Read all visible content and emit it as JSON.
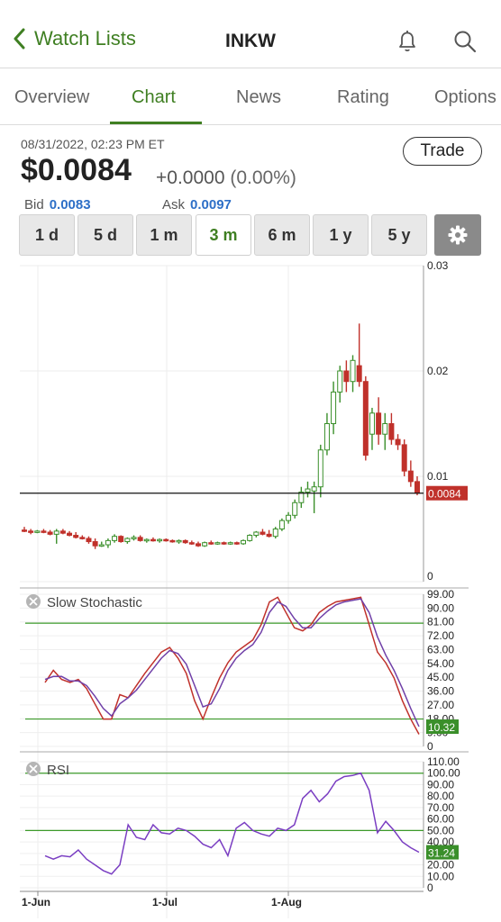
{
  "header": {
    "back_label": "Watch Lists",
    "title": "INKW"
  },
  "tabs": [
    {
      "label": "Overview",
      "active": false
    },
    {
      "label": "Chart",
      "active": true
    },
    {
      "label": "News",
      "active": false
    },
    {
      "label": "Rating",
      "active": false
    },
    {
      "label": "Options",
      "active": false
    }
  ],
  "quote": {
    "timestamp": "08/31/2022, 02:23 PM ET",
    "price": "$0.0084",
    "change": "+0.0000",
    "change_pct": "(0.00%)",
    "trade_label": "Trade",
    "bid_label": "Bid",
    "bid": "0.0083",
    "ask_label": "Ask",
    "ask": "0.0097"
  },
  "ranges": [
    {
      "label": "1 d",
      "active": false
    },
    {
      "label": "5 d",
      "active": false
    },
    {
      "label": "1 m",
      "active": false
    },
    {
      "label": "3 m",
      "active": true
    },
    {
      "label": "6 m",
      "active": false
    },
    {
      "label": "1 y",
      "active": false
    },
    {
      "label": "5 y",
      "active": false
    }
  ],
  "settings_icon": "gear-icon",
  "colors": {
    "accent": "#3f7f22",
    "up": "#3a8f2a",
    "down": "#c0312b",
    "link": "#2d6fc7"
  },
  "chart_data": [
    {
      "type": "candlestick",
      "title": "",
      "y_ticks": [
        "0.03",
        "0.02",
        "0.01",
        "0"
      ],
      "ylim": [
        0,
        0.03
      ],
      "last_price_label": "0.0084",
      "last_price": 0.0084,
      "x_ticks": [
        "1-Jun",
        "1-Jul",
        "1-Aug"
      ],
      "candles": [
        [
          0.0049,
          0.0052,
          0.0047,
          0.0048
        ],
        [
          0.0048,
          0.005,
          0.0045,
          0.0047
        ],
        [
          0.0047,
          0.0049,
          0.0046,
          0.0048
        ],
        [
          0.0048,
          0.005,
          0.0046,
          0.0047
        ],
        [
          0.0047,
          0.0049,
          0.0044,
          0.0045
        ],
        [
          0.0045,
          0.005,
          0.0036,
          0.0048
        ],
        [
          0.0048,
          0.005,
          0.0045,
          0.0046
        ],
        [
          0.0046,
          0.0048,
          0.0043,
          0.0044
        ],
        [
          0.0044,
          0.0047,
          0.0041,
          0.0042
        ],
        [
          0.0042,
          0.0044,
          0.004,
          0.0041
        ],
        [
          0.0041,
          0.0043,
          0.0036,
          0.0038
        ],
        [
          0.0038,
          0.0041,
          0.0031,
          0.0034
        ],
        [
          0.0034,
          0.0038,
          0.0033,
          0.0035
        ],
        [
          0.0035,
          0.0041,
          0.0032,
          0.0039
        ],
        [
          0.0039,
          0.0045,
          0.0037,
          0.0043
        ],
        [
          0.0043,
          0.0044,
          0.0037,
          0.0038
        ],
        [
          0.0038,
          0.0042,
          0.0036,
          0.0041
        ],
        [
          0.0041,
          0.0044,
          0.0039,
          0.0042
        ],
        [
          0.0042,
          0.0044,
          0.0038,
          0.0039
        ],
        [
          0.0039,
          0.0041,
          0.0037,
          0.004
        ],
        [
          0.004,
          0.0042,
          0.0038,
          0.0039
        ],
        [
          0.0039,
          0.0041,
          0.0037,
          0.004
        ],
        [
          0.004,
          0.0041,
          0.0038,
          0.0039
        ],
        [
          0.0039,
          0.004,
          0.0037,
          0.0038
        ],
        [
          0.0038,
          0.004,
          0.0036,
          0.0039
        ],
        [
          0.0039,
          0.004,
          0.0036,
          0.0037
        ],
        [
          0.0037,
          0.0039,
          0.0035,
          0.0036
        ],
        [
          0.0036,
          0.0038,
          0.0033,
          0.0034
        ],
        [
          0.0034,
          0.0038,
          0.0033,
          0.0037
        ],
        [
          0.0037,
          0.0039,
          0.0035,
          0.0036
        ],
        [
          0.0036,
          0.0038,
          0.0035,
          0.0037
        ],
        [
          0.0037,
          0.0038,
          0.0035,
          0.0036
        ],
        [
          0.0036,
          0.0038,
          0.0035,
          0.0037
        ],
        [
          0.0037,
          0.0038,
          0.0035,
          0.0036
        ],
        [
          0.0036,
          0.004,
          0.0035,
          0.0039
        ],
        [
          0.0039,
          0.0045,
          0.0038,
          0.0044
        ],
        [
          0.0044,
          0.0048,
          0.0042,
          0.0047
        ],
        [
          0.0047,
          0.005,
          0.0044,
          0.0045
        ],
        [
          0.0045,
          0.0049,
          0.0042,
          0.0043
        ],
        [
          0.0043,
          0.0052,
          0.0041,
          0.005
        ],
        [
          0.005,
          0.006,
          0.0048,
          0.0058
        ],
        [
          0.0058,
          0.0066,
          0.0055,
          0.0063
        ],
        [
          0.0063,
          0.0078,
          0.006,
          0.0075
        ],
        [
          0.0075,
          0.009,
          0.007,
          0.0085
        ],
        [
          0.0085,
          0.0095,
          0.008,
          0.0088
        ],
        [
          0.0086,
          0.0095,
          0.0065,
          0.009
        ],
        [
          0.009,
          0.013,
          0.008,
          0.0125
        ],
        [
          0.0125,
          0.016,
          0.012,
          0.015
        ],
        [
          0.015,
          0.019,
          0.014,
          0.018
        ],
        [
          0.018,
          0.0205,
          0.017,
          0.02
        ],
        [
          0.02,
          0.021,
          0.018,
          0.019
        ],
        [
          0.019,
          0.0215,
          0.018,
          0.021
        ],
        [
          0.0205,
          0.0245,
          0.0185,
          0.019
        ],
        [
          0.019,
          0.0195,
          0.0115,
          0.012
        ],
        [
          0.014,
          0.0165,
          0.0125,
          0.016
        ],
        [
          0.016,
          0.0175,
          0.013,
          0.014
        ],
        [
          0.014,
          0.016,
          0.0125,
          0.015
        ],
        [
          0.015,
          0.016,
          0.013,
          0.0135
        ],
        [
          0.0135,
          0.014,
          0.0125,
          0.013
        ],
        [
          0.013,
          0.0135,
          0.01,
          0.0105
        ],
        [
          0.0105,
          0.0115,
          0.009,
          0.0095
        ],
        [
          0.0095,
          0.01,
          0.0082,
          0.0084
        ]
      ]
    },
    {
      "type": "line",
      "title": "Slow Stochastic",
      "close_icon": "close-icon",
      "y_ticks": [
        "99.00",
        "90.00",
        "81.00",
        "72.00",
        "63.00",
        "54.00",
        "45.00",
        "36.00",
        "27.00",
        "18.00",
        "9.00",
        "0"
      ],
      "ylim": [
        0,
        100
      ],
      "reference_lines": [
        81,
        18
      ],
      "last_value_label": "10.32",
      "series": [
        {
          "name": "",
          "color": "#c0312b",
          "values": [
            42,
            50,
            44,
            42,
            44,
            38,
            28,
            18,
            18,
            34,
            32,
            40,
            48,
            55,
            62,
            65,
            58,
            48,
            30,
            18,
            32,
            45,
            55,
            62,
            66,
            70,
            80,
            95,
            98,
            88,
            78,
            76,
            80,
            88,
            92,
            95,
            96,
            97,
            98,
            80,
            62,
            55,
            45,
            30,
            18,
            8
          ]
        },
        {
          "name": "",
          "color": "#7040a8",
          "values": [
            44,
            46,
            46,
            43,
            43,
            40,
            33,
            25,
            20,
            28,
            32,
            37,
            44,
            51,
            58,
            63,
            61,
            54,
            40,
            26,
            28,
            38,
            50,
            58,
            63,
            67,
            75,
            88,
            95,
            92,
            84,
            78,
            78,
            84,
            89,
            93,
            95,
            96,
            97,
            88,
            72,
            60,
            50,
            38,
            25,
            13
          ]
        }
      ]
    },
    {
      "type": "line",
      "title": "RSI",
      "close_icon": "close-icon",
      "y_ticks": [
        "110.00",
        "100.00",
        "90.00",
        "80.00",
        "70.00",
        "60.00",
        "50.00",
        "40.00",
        "30.00",
        "20.00",
        "10.00",
        "0"
      ],
      "ylim": [
        0,
        110
      ],
      "reference_lines": [
        100,
        50
      ],
      "last_value_label": "31.24",
      "series": [
        {
          "name": "",
          "color": "#7a3ec2",
          "values": [
            28,
            25,
            28,
            27,
            33,
            25,
            20,
            15,
            12,
            20,
            55,
            44,
            42,
            55,
            48,
            47,
            52,
            50,
            45,
            38,
            35,
            42,
            28,
            52,
            57,
            50,
            47,
            45,
            52,
            50,
            55,
            78,
            85,
            75,
            82,
            93,
            97,
            98,
            100,
            85,
            48,
            58,
            50,
            40,
            35,
            31
          ]
        }
      ]
    }
  ]
}
